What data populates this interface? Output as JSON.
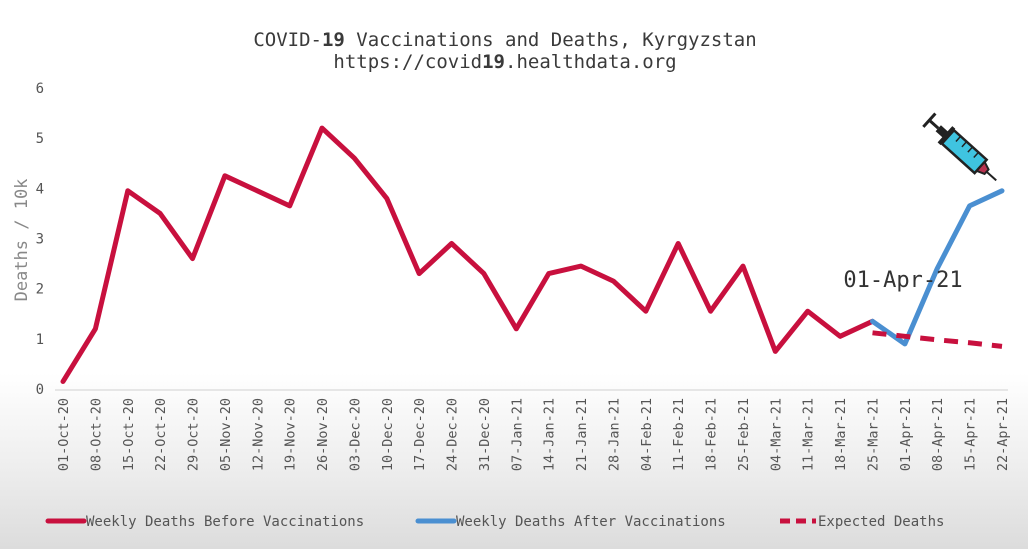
{
  "chart_data": {
    "type": "line",
    "title_line1_prefix": "COVID-",
    "title_line1_bold": "19",
    "title_line1_suffix": " Vaccinations and Deaths, Kyrgyzstan",
    "title_line2_prefix": "https://covid",
    "title_line2_bold": "19",
    "title_line2_suffix": ".healthdata.org",
    "ylabel": "Deaths / 10k",
    "ylim": [
      0,
      6
    ],
    "yticks": [
      "0",
      "1",
      "2",
      "3",
      "4",
      "5",
      "6"
    ],
    "categories": [
      "01-Oct-20",
      "08-Oct-20",
      "15-Oct-20",
      "22-Oct-20",
      "29-Oct-20",
      "05-Nov-20",
      "12-Nov-20",
      "19-Nov-20",
      "26-Nov-20",
      "03-Dec-20",
      "10-Dec-20",
      "17-Dec-20",
      "24-Dec-20",
      "31-Dec-20",
      "07-Jan-21",
      "14-Jan-21",
      "21-Jan-21",
      "28-Jan-21",
      "04-Feb-21",
      "11-Feb-21",
      "18-Feb-21",
      "25-Feb-21",
      "04-Mar-21",
      "11-Mar-21",
      "18-Mar-21",
      "25-Mar-21",
      "01-Apr-21",
      "08-Apr-21",
      "15-Apr-21",
      "22-Apr-21"
    ],
    "series": [
      {
        "name": "Weekly Deaths Before Vaccinations",
        "color": "#c8103e",
        "style": "solid",
        "values": [
          0.15,
          1.2,
          3.95,
          3.5,
          2.6,
          4.25,
          3.95,
          3.65,
          5.2,
          4.6,
          3.8,
          2.3,
          2.9,
          2.3,
          1.2,
          2.3,
          2.45,
          2.15,
          1.55,
          2.9,
          1.55,
          2.45,
          0.75,
          1.55,
          1.05,
          1.35,
          null,
          null,
          null,
          null
        ]
      },
      {
        "name": "Weekly Deaths After Vaccinations",
        "color": "#4a8fd1",
        "style": "solid",
        "values": [
          null,
          null,
          null,
          null,
          null,
          null,
          null,
          null,
          null,
          null,
          null,
          null,
          null,
          null,
          null,
          null,
          null,
          null,
          null,
          null,
          null,
          null,
          null,
          null,
          null,
          1.35,
          0.9,
          2.4,
          3.65,
          3.95
        ]
      },
      {
        "name": "Expected Deaths",
        "color": "#c8103e",
        "style": "dashed",
        "values": [
          null,
          null,
          null,
          null,
          null,
          null,
          null,
          null,
          null,
          null,
          null,
          null,
          null,
          null,
          null,
          null,
          null,
          null,
          null,
          null,
          null,
          null,
          null,
          null,
          null,
          1.12,
          1.05,
          0.98,
          0.92,
          0.85
        ]
      }
    ],
    "annotation": "01-Apr-21",
    "legend_position": "bottom",
    "grid": false
  }
}
